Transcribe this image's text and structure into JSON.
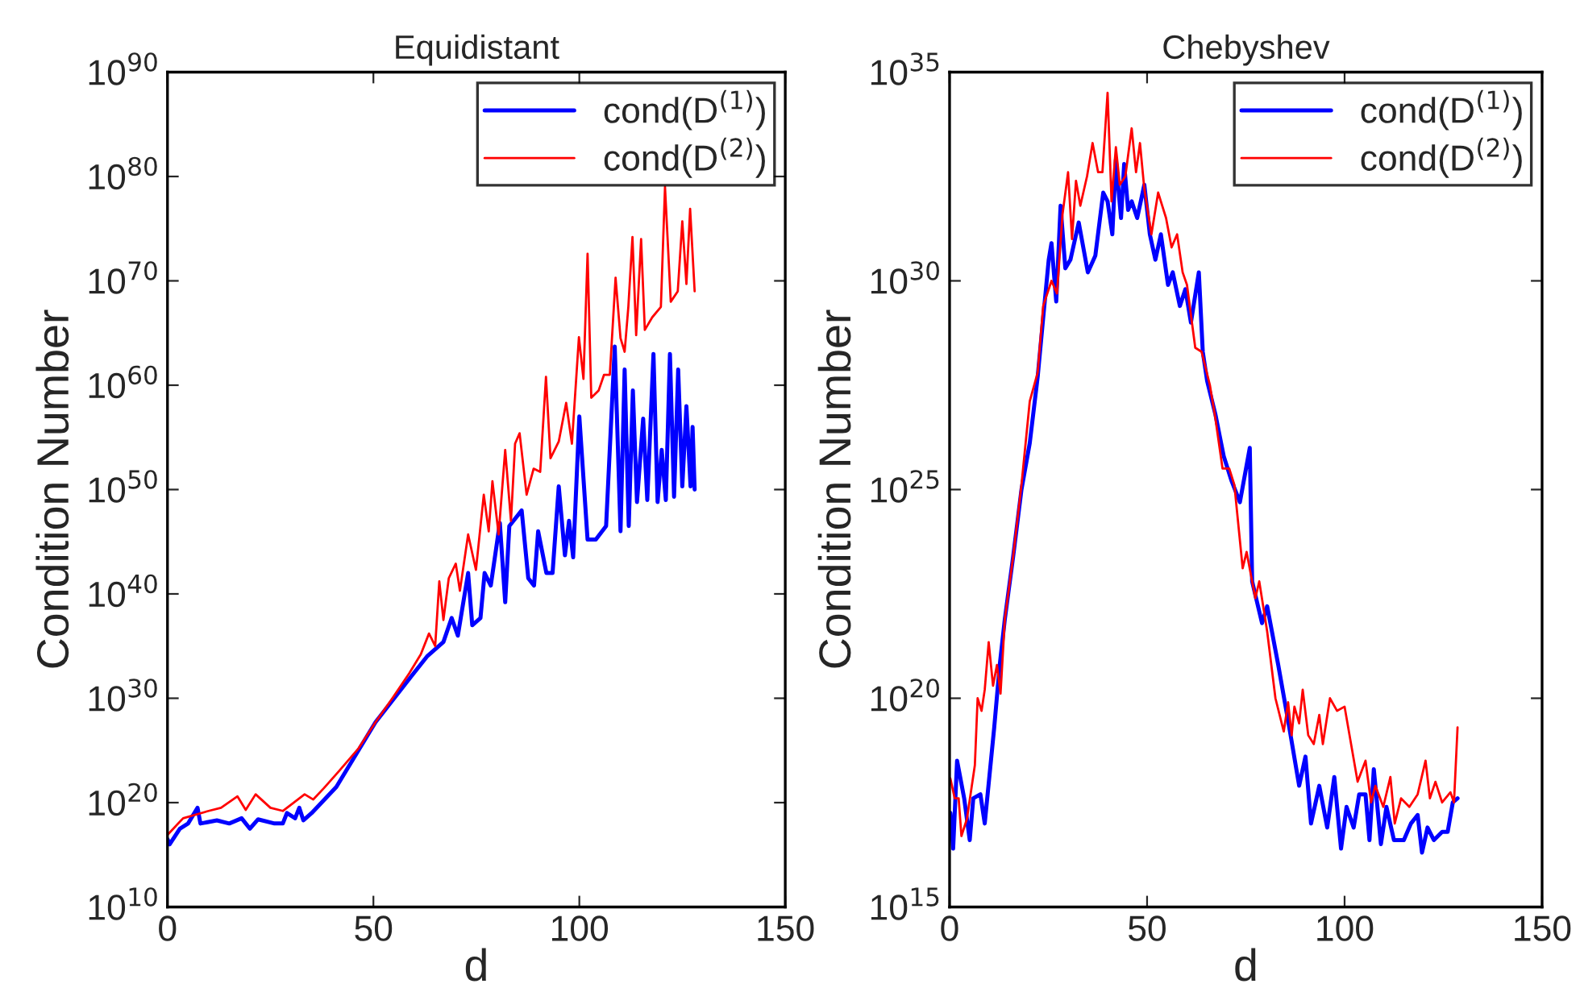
{
  "chart_data": [
    {
      "type": "line",
      "title": "Equidistant",
      "xlabel": "d",
      "ylabel": "Condition Number",
      "log": "y",
      "grid": false,
      "legend": "top right",
      "xlim": [
        0,
        150
      ],
      "xticks": [
        0,
        50,
        100,
        150
      ],
      "ylim": [
        10000000000.0,
        1e+90
      ],
      "yticks": [
        {
          "value": 10000000000.0,
          "label": "10$^{10}$"
        },
        {
          "value": 1e+20,
          "label": "10$^{20}$"
        },
        {
          "value": 1e+30,
          "label": "10$^{30}$"
        },
        {
          "value": 1e+40,
          "label": "10$^{40}$"
        },
        {
          "value": 1e+50,
          "label": "10$^{50}$"
        },
        {
          "value": 1e+60,
          "label": "10$^{60}$"
        },
        {
          "value": 1e+70,
          "label": "10$^{70}$"
        },
        {
          "value": 1e+80,
          "label": "10$^{80}$"
        },
        {
          "value": 1e+90,
          "label": "10$^{90}$"
        }
      ],
      "series": [
        {
          "name": "cond(D$^{(1)}$)",
          "color": "#0000ff",
          "x": [
            0,
            0.5,
            3,
            5,
            7.3,
            8,
            12,
            15,
            18,
            20,
            22,
            26,
            28,
            29,
            31,
            32,
            33,
            35,
            41,
            50.5,
            59,
            63,
            67,
            69,
            70.5,
            73,
            74,
            76,
            77,
            78.5,
            80.7,
            82,
            83,
            86,
            87.6,
            89,
            90,
            92,
            93.5,
            95,
            96.5,
            97.5,
            98.5,
            100,
            102,
            104,
            106.5,
            108.6,
            110,
            111,
            112,
            113,
            114,
            115.5,
            116.5,
            118,
            119,
            120,
            121,
            122,
            123,
            124,
            125,
            126,
            127,
            127.5,
            128
          ],
          "values": [
            3.2e+16,
            1e+16,
            3.2e+17,
            1e+18,
            3.2e+19,
            1e+18,
            2e+18,
            1e+18,
            3.2e+18,
            3.2e+17,
            2.5e+18,
            1e+18,
            1e+18,
            1e+19,
            3.2e+18,
            3.2e+19,
            2e+18,
            1e+19,
            3.2e+21,
            5e+27,
            1e+32,
            1e+34,
            2.5e+35,
            5e+37,
            1e+36,
            1e+42,
            1e+37,
            5e+37,
            1e+42,
            6.3e+40,
            6.3e+46,
            1.6e+39,
            3.2e+46,
            1e+48,
            3.2e+41,
            6.3e+40,
            1e+46,
            1e+42,
            1e+42,
            2e+50,
            5e+43,
            1e+47,
            3.2e+43,
            1e+57,
            1.6e+45,
            1.6e+45,
            3.2e+46,
            5e+63,
            1e+46,
            3.2e+61,
            3.2e+46,
            3.2e+59,
            6.3e+48,
            6.3e+56,
            1e+49,
            1e+63,
            6.3e+48,
            6.3e+53,
            1e+49,
            1e+63,
            2e+49,
            3.2e+61,
            2e+50,
            1e+58,
            2e+50,
            1e+56,
            1e+50
          ]
        },
        {
          "name": "cond(D$^{(2)}$)",
          "color": "#ff0000",
          "x": [
            0,
            3.8,
            10,
            13,
            17,
            19,
            21.4,
            25,
            28,
            33.3,
            35.4,
            38,
            41.6,
            46.4,
            50.5,
            54.6,
            58.7,
            61.5,
            63.5,
            65,
            66,
            67,
            68.3,
            70,
            71,
            73,
            74.9,
            76.8,
            78,
            78.9,
            80.4,
            82,
            83.4,
            84.4,
            85.5,
            87.2,
            88.9,
            90.5,
            91.9,
            93,
            95,
            96.8,
            98.2,
            99.9,
            101,
            102,
            102.9,
            104.7,
            106,
            107.4,
            108.8,
            110,
            111,
            111.9,
            112.9,
            113.8,
            115,
            115.9,
            117.7,
            119.8,
            120.8,
            122.2,
            123.9,
            125,
            126,
            126.9,
            128
          ],
          "values": [
            8e+16,
            3.2e+18,
            1.6e+19,
            3.2e+19,
            4e+20,
            2e+19,
            6.3e+20,
            3.2e+19,
            1.6e+19,
            6.3e+20,
            2e+20,
            2.5e+21,
            1e+23,
            1.6e+25,
            5e+27,
            1e+30,
            2.5e+32,
            1.6e+34,
            1.6e+36,
            1e+35,
            1.6e+41,
            3.2e+37,
            3.2e+41,
            8e+42,
            2e+40,
            5e+45,
            2e+42,
            3.2e+49,
            1e+46,
            6.3e+50,
            5e+45,
            6.3e+53,
            1e+47,
            2.5e+54,
            2.5e+55,
            3.2e+49,
            1e+52,
            5e+51,
            6.3e+60,
            1e+53,
            4e+54,
            2e+58,
            2.5e+54,
            4e+64,
            4e+60,
            4e+72,
            6.3e+58,
            3.2e+59,
            1e+61,
            1e+61,
            2e+70,
            3.2e+64,
            1.6e+63,
            3.2e+67,
            1.6e+74,
            6.3e+64,
            1e+74,
            2e+65,
            3.2e+66,
            3.2e+67,
            1e+79,
            1e+68,
            1e+69,
            5e+75,
            5e+69,
            8e+76,
            1e+69
          ]
        }
      ]
    },
    {
      "type": "line",
      "title": "Chebyshev",
      "xlabel": "d",
      "ylabel": "Condition Number",
      "log": "y",
      "grid": false,
      "legend": "top right",
      "xlim": [
        0,
        150
      ],
      "xticks": [
        0,
        50,
        100,
        150
      ],
      "ylim": [
        1000000000000000.0,
        1e+35
      ],
      "yticks": [
        {
          "value": 1000000000000000.0,
          "label": "10$^{15}$"
        },
        {
          "value": 1e+20,
          "label": "10$^{20}$"
        },
        {
          "value": 1e+25,
          "label": "10$^{25}$"
        },
        {
          "value": 1e+30,
          "label": "10$^{30}$"
        },
        {
          "value": 1e+35,
          "label": "10$^{35}$"
        }
      ],
      "series": [
        {
          "name": "cond(D$^{(1)}$)",
          "color": "#0000ff",
          "x": [
            0.2,
            0.9,
            1.9,
            3.7,
            5.1,
            6,
            7.8,
            8.9,
            11.3,
            12.7,
            14,
            16.1,
            18.2,
            20.3,
            22.3,
            23.7,
            25.1,
            25.8,
            27,
            28.1,
            29.3,
            30.6,
            32.7,
            35,
            36.9,
            38.9,
            40,
            41.2,
            42.1,
            43.4,
            44.2,
            45.2,
            46.1,
            47.5,
            49.3,
            50.7,
            52.1,
            53.5,
            55.3,
            56.5,
            58.3,
            59.7,
            61.1,
            63.1,
            64.1,
            65.2,
            67.3,
            69.4,
            71.4,
            73.5,
            76,
            76.6,
            79.1,
            80.4,
            83.2,
            86,
            88.5,
            90.1,
            91.5,
            93.6,
            95.6,
            97.4,
            99.1,
            100.5,
            102.3,
            103.7,
            105.3,
            106.3,
            107.4,
            109.2,
            110.6,
            112.5,
            115,
            116.8,
            118.5,
            119.6,
            121,
            122.6,
            124.7,
            126.1,
            127.4,
            128.6
          ],
          "values": [
            1.8e+17,
            2.5e+16,
            3.2e+18,
            4e+17,
            4e+16,
            4e+17,
            5e+17,
            1e+17,
            2e+19,
            6.3e+20,
            8e+21,
            2.5e+23,
            1e+25,
            1.3e+26,
            5e+27,
            1.3e+29,
            3.2e+30,
            8e+30,
            3.2e+29,
            6.3e+31,
            2e+30,
            3.2e+30,
            2.5e+31,
            1.6e+30,
            4e+30,
            1.3e+32,
            8e+31,
            1.3e+31,
            8e+32,
            3.2e+31,
            6.3e+32,
            5e+31,
            8e+31,
            3.2e+31,
            2e+32,
            1.3e+31,
            3.2e+30,
            1.3e+31,
            8e+29,
            1.6e+30,
            2.5e+29,
            6.3e+29,
            1e+29,
            1.6e+30,
            2e+28,
            4e+27,
            6.3e+26,
            6.3e+25,
            1.6e+25,
            5e+24,
            1e+26,
            6.3e+22,
            6.3e+21,
            1.6e+22,
            6.3e+20,
            2e+19,
            8e+17,
            4e+18,
            1e+17,
            8e+17,
            8e+16,
            1.3e+18,
            2.5e+16,
            2.5e+17,
            8e+16,
            5e+17,
            5e+17,
            4e+16,
            2e+18,
            3.2e+16,
            2.5e+17,
            4e+16,
            4e+16,
            1e+17,
            1.6e+17,
            2e+16,
            8e+16,
            4e+16,
            6.3e+16,
            6.3e+16,
            3.2e+17,
            4e+17
          ]
        },
        {
          "name": "cond(D$^{(2)}$)",
          "color": "#ff0000",
          "x": [
            0.2,
            1.3,
            2.3,
            3,
            4.4,
            6.4,
            7.1,
            8.1,
            8.9,
            9.9,
            11,
            12,
            12.9,
            14,
            16.1,
            18.2,
            20.3,
            22.3,
            23.7,
            25.8,
            27.2,
            28.6,
            30,
            31,
            32,
            33.1,
            34.8,
            36.2,
            37.6,
            38.7,
            40,
            41,
            42.1,
            43.1,
            44.5,
            46.1,
            47.2,
            48.2,
            49.3,
            51.1,
            52.8,
            54.8,
            56.2,
            57.6,
            59,
            60.1,
            62.2,
            63.8,
            65.9,
            67.3,
            69.1,
            70.8,
            72.1,
            74.2,
            75.2,
            77.4,
            78.4,
            80.4,
            82.5,
            84.6,
            85.7,
            86.6,
            87.3,
            88.5,
            89.4,
            90.8,
            92.2,
            93.6,
            94.5,
            96.3,
            98.1,
            100,
            103.3,
            105.3,
            106.7,
            107.8,
            109.8,
            111.6,
            112.7,
            114.3,
            116.4,
            118.5,
            120.5,
            121.6,
            123,
            124.7,
            126.8,
            127.7,
            128.6
          ],
          "values": [
            1.2e+18,
            4e+17,
            4e+17,
            5e+16,
            1.3e+17,
            2.5e+18,
            1e+20,
            5e+19,
            1.6e+20,
            2.2e+21,
            2e+20,
            6.3e+20,
            1.3e+20,
            8e+21,
            2.5e+23,
            1.3e+25,
            1.3e+27,
            6.3e+27,
            2.5e+29,
            1e+30,
            5e+29,
            4e+31,
            4e+32,
            1e+31,
            2.5e+32,
            6.3e+31,
            3.2e+32,
            2e+33,
            4e+32,
            4e+32,
            3.2e+34,
            8e+31,
            1.6e+33,
            2e+32,
            3.2e+32,
            4.5e+33,
            4e+32,
            2e+33,
            1.6e+32,
            1.3e+31,
            1.3e+32,
            3.2e+31,
            6.3e+30,
            1.3e+31,
            1.6e+30,
            8e+29,
            2.5e+28,
            2e+28,
            3.2e+27,
            5e+26,
            3.2e+25,
            3.2e+25,
            1.3e+25,
            1.3e+23,
            3.2e+23,
            2.5e+22,
            6.3e+22,
            4e+21,
            1e+20,
            1.6e+19,
            8e+19,
            1.3e+19,
            6.3e+19,
            2.5e+19,
            1.6e+20,
            1.3e+19,
            8e+18,
            4e+19,
            8e+18,
            1e+20,
            5e+19,
            6.3e+19,
            1e+18,
            3.2e+18,
            3.2e+17,
            8e+17,
            2.5e+17,
            1.3e+18,
            1e+17,
            4e+17,
            2.5e+17,
            5e+17,
            3.2e+18,
            4e+17,
            1e+18,
            3.2e+17,
            5.6e+17,
            3.2e+17,
            2e+19
          ]
        }
      ]
    }
  ]
}
